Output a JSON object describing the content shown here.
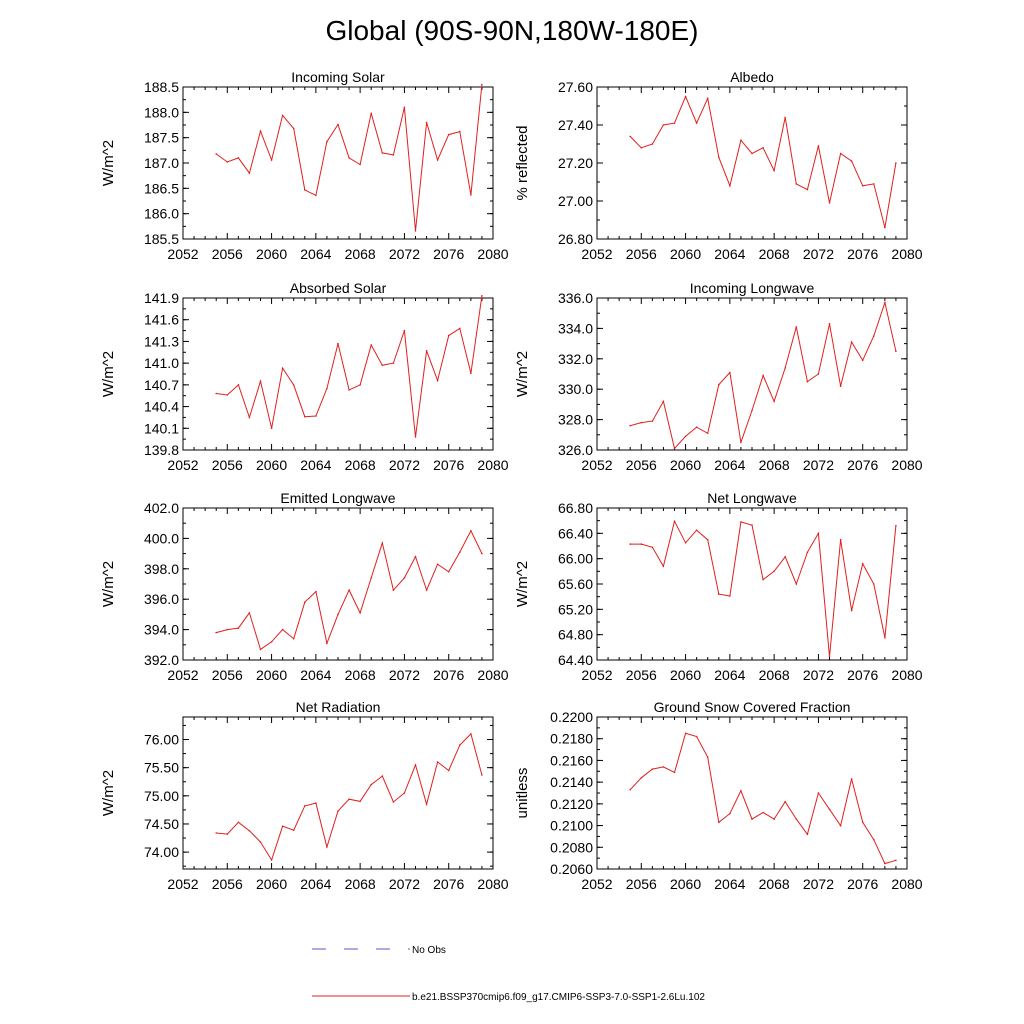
{
  "title": "Global (90S-90N,180W-180E)",
  "colors": {
    "series": "#e0201e",
    "obs": "#5a5abe",
    "axis": "#000000"
  },
  "legend": {
    "obs_label": "No Obs",
    "series_label": "b.e21.BSSP370cmip6.f09_g17.CMIP6-SSP3-7.0-SSP1-2.6Lu.102"
  },
  "chart_data": [
    {
      "type": "line",
      "title": "Incoming Solar",
      "ylabel": "W/m^2",
      "xlim": [
        2052,
        2080
      ],
      "xticks": [
        "2052",
        "2056",
        "2060",
        "2064",
        "2068",
        "2072",
        "2076",
        "2080"
      ],
      "ylim": [
        185.5,
        188.5
      ],
      "yticks": [
        "185.5",
        "186.0",
        "186.5",
        "187.0",
        "187.5",
        "188.0",
        "188.5"
      ],
      "x": [
        2055,
        2056,
        2057,
        2058,
        2059,
        2060,
        2061,
        2062,
        2063,
        2064,
        2065,
        2066,
        2067,
        2068,
        2069,
        2070,
        2071,
        2072,
        2073,
        2074,
        2075,
        2076,
        2077,
        2078,
        2079
      ],
      "values": [
        187.18,
        187.02,
        187.1,
        186.8,
        187.63,
        187.06,
        187.94,
        187.68,
        186.47,
        186.36,
        187.42,
        187.76,
        187.1,
        186.97,
        187.98,
        187.2,
        187.16,
        188.1,
        185.66,
        187.8,
        187.06,
        187.56,
        187.62,
        186.37,
        188.55
      ]
    },
    {
      "type": "line",
      "title": "Albedo",
      "ylabel": "% reflected",
      "xlim": [
        2052,
        2080
      ],
      "xticks": [
        "2052",
        "2056",
        "2060",
        "2064",
        "2068",
        "2072",
        "2076",
        "2080"
      ],
      "ylim": [
        26.8,
        27.6
      ],
      "yticks": [
        "26.80",
        "27.00",
        "27.20",
        "27.40",
        "27.60"
      ],
      "x": [
        2055,
        2056,
        2057,
        2058,
        2059,
        2060,
        2061,
        2062,
        2063,
        2064,
        2065,
        2066,
        2067,
        2068,
        2069,
        2070,
        2071,
        2072,
        2073,
        2074,
        2075,
        2076,
        2077,
        2078,
        2079
      ],
      "values": [
        27.34,
        27.28,
        27.3,
        27.4,
        27.41,
        27.55,
        27.41,
        27.54,
        27.23,
        27.08,
        27.32,
        27.25,
        27.28,
        27.16,
        27.44,
        27.09,
        27.06,
        27.29,
        26.99,
        27.25,
        27.21,
        27.08,
        27.09,
        26.86,
        27.2
      ]
    },
    {
      "type": "line",
      "title": "Absorbed Solar",
      "ylabel": "W/m^2",
      "xlim": [
        2052,
        2080
      ],
      "xticks": [
        "2052",
        "2056",
        "2060",
        "2064",
        "2068",
        "2072",
        "2076",
        "2080"
      ],
      "ylim": [
        139.8,
        141.9
      ],
      "yticks": [
        "139.8",
        "140.1",
        "140.4",
        "140.7",
        "141.0",
        "141.3",
        "141.6",
        "141.9"
      ],
      "x": [
        2055,
        2056,
        2057,
        2058,
        2059,
        2060,
        2061,
        2062,
        2063,
        2064,
        2065,
        2066,
        2067,
        2068,
        2069,
        2070,
        2071,
        2072,
        2073,
        2074,
        2075,
        2076,
        2077,
        2078,
        2079
      ],
      "values": [
        140.58,
        140.56,
        140.7,
        140.25,
        140.75,
        140.1,
        140.93,
        140.7,
        140.26,
        140.27,
        140.65,
        141.27,
        140.63,
        140.7,
        141.25,
        140.97,
        141.0,
        141.45,
        139.98,
        141.17,
        140.76,
        141.38,
        141.48,
        140.86,
        141.93
      ]
    },
    {
      "type": "line",
      "title": "Incoming Longwave",
      "ylabel": "W/m^2",
      "xlim": [
        2052,
        2080
      ],
      "xticks": [
        "2052",
        "2056",
        "2060",
        "2064",
        "2068",
        "2072",
        "2076",
        "2080"
      ],
      "ylim": [
        326.0,
        336.0
      ],
      "yticks": [
        "326.0",
        "328.0",
        "330.0",
        "332.0",
        "334.0",
        "336.0"
      ],
      "x": [
        2055,
        2056,
        2057,
        2058,
        2059,
        2060,
        2061,
        2062,
        2063,
        2064,
        2065,
        2066,
        2067,
        2068,
        2069,
        2070,
        2071,
        2072,
        2073,
        2074,
        2075,
        2076,
        2077,
        2078,
        2079
      ],
      "values": [
        327.6,
        327.8,
        327.9,
        329.2,
        326.1,
        326.9,
        327.5,
        327.1,
        330.3,
        331.1,
        326.5,
        328.6,
        330.9,
        329.2,
        331.4,
        334.1,
        330.5,
        331.0,
        334.3,
        330.2,
        333.1,
        331.9,
        333.5,
        335.7,
        332.5
      ]
    },
    {
      "type": "line",
      "title": "Emitted Longwave",
      "ylabel": "W/m^2",
      "xlim": [
        2052,
        2080
      ],
      "xticks": [
        "2052",
        "2056",
        "2060",
        "2064",
        "2068",
        "2072",
        "2076",
        "2080"
      ],
      "ylim": [
        392.0,
        402.0
      ],
      "yticks": [
        "392.0",
        "394.0",
        "396.0",
        "398.0",
        "400.0",
        "402.0"
      ],
      "x": [
        2055,
        2056,
        2057,
        2058,
        2059,
        2060,
        2061,
        2062,
        2063,
        2064,
        2065,
        2066,
        2067,
        2068,
        2069,
        2070,
        2071,
        2072,
        2073,
        2074,
        2075,
        2076,
        2077,
        2078,
        2079
      ],
      "values": [
        393.8,
        394.0,
        394.1,
        395.1,
        392.7,
        393.2,
        394.0,
        393.4,
        395.8,
        396.5,
        393.1,
        395.0,
        396.6,
        395.1,
        397.4,
        399.7,
        396.6,
        397.4,
        398.8,
        396.6,
        398.3,
        397.8,
        399.1,
        400.5,
        399.0
      ]
    },
    {
      "type": "line",
      "title": "Net Longwave",
      "ylabel": "W/m^2",
      "xlim": [
        2052,
        2080
      ],
      "xticks": [
        "2052",
        "2056",
        "2060",
        "2064",
        "2068",
        "2072",
        "2076",
        "2080"
      ],
      "ylim": [
        64.4,
        66.8
      ],
      "yticks": [
        "64.40",
        "64.80",
        "65.20",
        "65.60",
        "66.00",
        "66.40",
        "66.80"
      ],
      "x": [
        2055,
        2056,
        2057,
        2058,
        2059,
        2060,
        2061,
        2062,
        2063,
        2064,
        2065,
        2066,
        2067,
        2068,
        2069,
        2070,
        2071,
        2072,
        2073,
        2074,
        2075,
        2076,
        2077,
        2078,
        2079
      ],
      "values": [
        66.23,
        66.23,
        66.18,
        65.88,
        66.59,
        66.25,
        66.45,
        66.3,
        65.44,
        65.41,
        66.58,
        66.53,
        65.67,
        65.8,
        66.03,
        65.6,
        66.1,
        66.4,
        64.45,
        66.3,
        65.18,
        65.92,
        65.6,
        64.75,
        66.52
      ]
    },
    {
      "type": "line",
      "title": "Net Radiation",
      "ylabel": "W/m^2",
      "xlim": [
        2052,
        2080
      ],
      "xticks": [
        "2052",
        "2056",
        "2060",
        "2064",
        "2068",
        "2072",
        "2076",
        "2080"
      ],
      "ylim": [
        73.7,
        76.4
      ],
      "yticks": [
        "74.00",
        "74.50",
        "75.00",
        "75.50",
        "76.00"
      ],
      "x": [
        2055,
        2056,
        2057,
        2058,
        2059,
        2060,
        2061,
        2062,
        2063,
        2064,
        2065,
        2066,
        2067,
        2068,
        2069,
        2070,
        2071,
        2072,
        2073,
        2074,
        2075,
        2076,
        2077,
        2078,
        2079
      ],
      "values": [
        74.34,
        74.32,
        74.53,
        74.38,
        74.18,
        73.86,
        74.46,
        74.39,
        74.82,
        74.87,
        74.09,
        74.73,
        74.94,
        74.9,
        75.2,
        75.35,
        74.89,
        75.05,
        75.55,
        74.85,
        75.6,
        75.45,
        75.9,
        76.1,
        75.37
      ]
    },
    {
      "type": "line",
      "title": "Ground Snow Covered Fraction",
      "ylabel": "unitless",
      "xlim": [
        2052,
        2080
      ],
      "xticks": [
        "2052",
        "2056",
        "2060",
        "2064",
        "2068",
        "2072",
        "2076",
        "2080"
      ],
      "ylim": [
        0.206,
        0.22
      ],
      "yticks": [
        "0.2060",
        "0.2080",
        "0.2100",
        "0.2120",
        "0.2140",
        "0.2160",
        "0.2180",
        "0.2200"
      ],
      "x": [
        2055,
        2056,
        2057,
        2058,
        2059,
        2060,
        2061,
        2062,
        2063,
        2064,
        2065,
        2066,
        2067,
        2068,
        2069,
        2070,
        2071,
        2072,
        2073,
        2074,
        2075,
        2076,
        2077,
        2078,
        2079
      ],
      "values": [
        0.2133,
        0.2144,
        0.2152,
        0.2154,
        0.2149,
        0.2185,
        0.2182,
        0.2163,
        0.2103,
        0.2111,
        0.2132,
        0.2106,
        0.2112,
        0.2106,
        0.2122,
        0.2106,
        0.2092,
        0.213,
        0.2115,
        0.21,
        0.2143,
        0.2103,
        0.2087,
        0.2065,
        0.2068
      ]
    }
  ]
}
